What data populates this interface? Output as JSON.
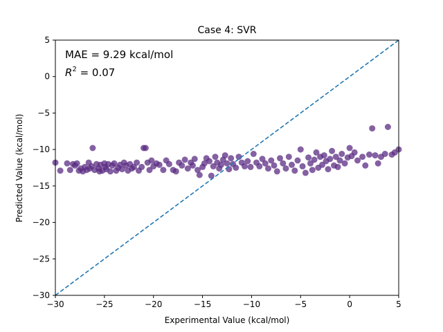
{
  "chart_data": {
    "type": "scatter",
    "title": "Case 4: SVR",
    "xlabel": "Experimental Value (kcal/mol)",
    "ylabel": "Predicted Value (kcal/mol)",
    "xlim": [
      -30,
      5
    ],
    "ylim": [
      -30,
      5
    ],
    "xticks": [
      -30,
      -25,
      -20,
      -15,
      -10,
      -5,
      0,
      5
    ],
    "yticks": [
      -30,
      -25,
      -20,
      -15,
      -10,
      -5,
      0,
      5
    ],
    "xtick_labels": [
      "−30",
      "−25",
      "−20",
      "−15",
      "−10",
      "−5",
      "0",
      "5"
    ],
    "ytick_labels": [
      "−30",
      "−25",
      "−20",
      "−15",
      "−10",
      "−5",
      "0",
      "5"
    ],
    "annotations": {
      "mae": "MAE = 9.29 kcal/mol",
      "r2_symbol": "R",
      "r2_exponent": "2",
      "r2_value": " = 0.07"
    },
    "reference_line": {
      "style": "dashed",
      "color": "#1f77b4",
      "x": [
        -30,
        5
      ],
      "y": [
        -30,
        5
      ]
    },
    "marker_color": "#5b2c83",
    "marker_opacity": 0.75,
    "grid": false,
    "points": [
      [
        -30.0,
        -11.8
      ],
      [
        -29.5,
        -12.9
      ],
      [
        -28.8,
        -11.9
      ],
      [
        -28.5,
        -12.8
      ],
      [
        -28.2,
        -12.0
      ],
      [
        -28.0,
        -12.2
      ],
      [
        -27.8,
        -11.9
      ],
      [
        -27.6,
        -12.9
      ],
      [
        -27.4,
        -12.6
      ],
      [
        -27.2,
        -13.0
      ],
      [
        -27.0,
        -12.4
      ],
      [
        -26.8,
        -12.8
      ],
      [
        -26.6,
        -11.8
      ],
      [
        -26.5,
        -12.6
      ],
      [
        -26.3,
        -12.3
      ],
      [
        -26.2,
        -9.8
      ],
      [
        -26.0,
        -12.8
      ],
      [
        -25.8,
        -12.0
      ],
      [
        -25.6,
        -12.6
      ],
      [
        -25.5,
        -13.0
      ],
      [
        -25.4,
        -12.1
      ],
      [
        -25.2,
        -12.9
      ],
      [
        -25.0,
        -11.9
      ],
      [
        -24.9,
        -12.4
      ],
      [
        -24.8,
        -12.7
      ],
      [
        -24.6,
        -12.0
      ],
      [
        -24.4,
        -13.0
      ],
      [
        -24.2,
        -12.2
      ],
      [
        -24.0,
        -11.9
      ],
      [
        -23.8,
        -12.9
      ],
      [
        -23.6,
        -12.5
      ],
      [
        -23.4,
        -12.1
      ],
      [
        -23.2,
        -12.7
      ],
      [
        -23.0,
        -11.8
      ],
      [
        -22.8,
        -12.2
      ],
      [
        -22.6,
        -12.9
      ],
      [
        -22.4,
        -12.0
      ],
      [
        -22.2,
        -12.6
      ],
      [
        -22.0,
        -12.4
      ],
      [
        -21.7,
        -11.8
      ],
      [
        -21.5,
        -12.9
      ],
      [
        -21.2,
        -12.4
      ],
      [
        -21.0,
        -9.8
      ],
      [
        -20.8,
        -9.8
      ],
      [
        -20.6,
        -11.8
      ],
      [
        -20.4,
        -12.8
      ],
      [
        -20.2,
        -11.5
      ],
      [
        -20.0,
        -12.3
      ],
      [
        -19.7,
        -11.9
      ],
      [
        -19.4,
        -12.1
      ],
      [
        -19.0,
        -12.8
      ],
      [
        -18.7,
        -11.5
      ],
      [
        -18.4,
        -12.0
      ],
      [
        -18.0,
        -12.8
      ],
      [
        -17.7,
        -13.0
      ],
      [
        -17.4,
        -11.8
      ],
      [
        -17.1,
        -12.2
      ],
      [
        -16.8,
        -11.4
      ],
      [
        -16.5,
        -12.6
      ],
      [
        -16.2,
        -11.8
      ],
      [
        -16.0,
        -12.2
      ],
      [
        -15.8,
        -11.3
      ],
      [
        -15.5,
        -12.8
      ],
      [
        -15.3,
        -13.5
      ],
      [
        -15.0,
        -12.4
      ],
      [
        -14.8,
        -11.9
      ],
      [
        -14.6,
        -11.2
      ],
      [
        -14.3,
        -11.6
      ],
      [
        -14.1,
        -13.6
      ],
      [
        -13.9,
        -12.3
      ],
      [
        -13.7,
        -11.0
      ],
      [
        -13.5,
        -11.8
      ],
      [
        -13.3,
        -12.6
      ],
      [
        -13.1,
        -12.1
      ],
      [
        -12.9,
        -11.4
      ],
      [
        -12.7,
        -10.8
      ],
      [
        -12.5,
        -11.9
      ],
      [
        -12.3,
        -12.7
      ],
      [
        -12.1,
        -11.2
      ],
      [
        -11.9,
        -12.0
      ],
      [
        -11.6,
        -12.5
      ],
      [
        -11.3,
        -11.0
      ],
      [
        -11.0,
        -11.8
      ],
      [
        -10.7,
        -12.3
      ],
      [
        -10.4,
        -11.6
      ],
      [
        -10.1,
        -12.4
      ],
      [
        -9.8,
        -10.6
      ],
      [
        -9.5,
        -11.8
      ],
      [
        -9.2,
        -12.3
      ],
      [
        -8.9,
        -11.3
      ],
      [
        -8.6,
        -11.9
      ],
      [
        -8.3,
        -12.6
      ],
      [
        -8.0,
        -11.5
      ],
      [
        -7.7,
        -12.2
      ],
      [
        -7.4,
        -13.0
      ],
      [
        -7.1,
        -11.2
      ],
      [
        -6.8,
        -11.9
      ],
      [
        -6.5,
        -12.6
      ],
      [
        -6.2,
        -11.0
      ],
      [
        -5.9,
        -12.1
      ],
      [
        -5.6,
        -12.9
      ],
      [
        -5.3,
        -11.5
      ],
      [
        -5.0,
        -10.0
      ],
      [
        -4.8,
        -12.3
      ],
      [
        -4.5,
        -13.2
      ],
      [
        -4.2,
        -11.1
      ],
      [
        -4.0,
        -11.9
      ],
      [
        -3.8,
        -12.8
      ],
      [
        -3.6,
        -11.4
      ],
      [
        -3.4,
        -10.4
      ],
      [
        -3.2,
        -12.5
      ],
      [
        -3.0,
        -11.0
      ],
      [
        -2.8,
        -12.1
      ],
      [
        -2.6,
        -10.8
      ],
      [
        -2.4,
        -11.6
      ],
      [
        -2.2,
        -12.7
      ],
      [
        -2.0,
        -11.3
      ],
      [
        -1.8,
        -10.2
      ],
      [
        -1.6,
        -12.2
      ],
      [
        -1.4,
        -11.0
      ],
      [
        -1.2,
        -12.4
      ],
      [
        -1.0,
        -11.5
      ],
      [
        -0.8,
        -10.6
      ],
      [
        -0.5,
        -11.9
      ],
      [
        -0.2,
        -11.1
      ],
      [
        0.0,
        -9.8
      ],
      [
        0.2,
        -10.9
      ],
      [
        0.5,
        -10.4
      ],
      [
        0.8,
        -11.5
      ],
      [
        1.3,
        -11.0
      ],
      [
        1.6,
        -12.2
      ],
      [
        2.0,
        -10.7
      ],
      [
        2.3,
        -7.1
      ],
      [
        2.6,
        -10.8
      ],
      [
        2.9,
        -11.9
      ],
      [
        3.2,
        -11.0
      ],
      [
        3.6,
        -10.6
      ],
      [
        3.9,
        -6.9
      ],
      [
        4.3,
        -10.7
      ],
      [
        4.6,
        -10.4
      ],
      [
        5.0,
        -10.0
      ]
    ]
  }
}
